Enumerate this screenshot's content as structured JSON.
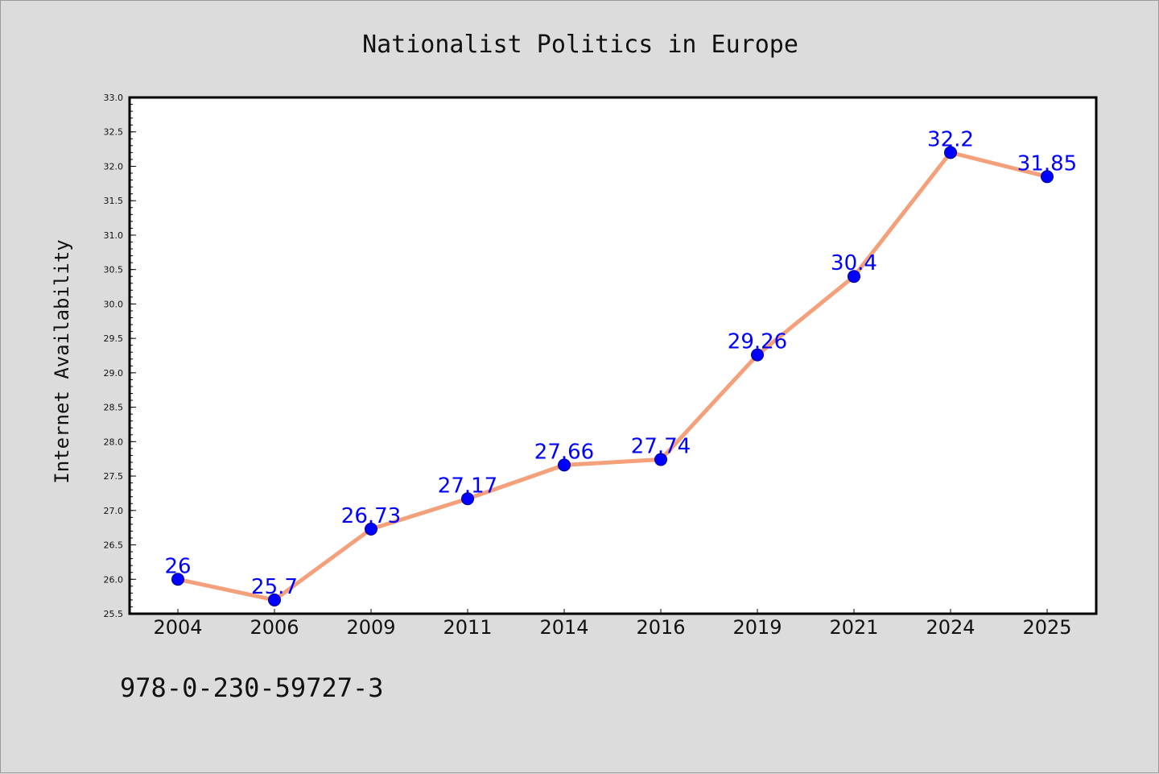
{
  "chart_data": {
    "type": "line",
    "title": "Nationalist Politics in Europe",
    "xlabel": "",
    "ylabel": "Internet Availability",
    "categories": [
      "2004",
      "2006",
      "2009",
      "2011",
      "2014",
      "2016",
      "2019",
      "2021",
      "2024",
      "2025"
    ],
    "series": [
      {
        "values": [
          26,
          25.7,
          26.73,
          27.17,
          27.66,
          27.74,
          29.26,
          30.4,
          32.2,
          31.85
        ],
        "labels": [
          "26",
          "25.7",
          "26.73",
          "27.17",
          "27.66",
          "27.74",
          "29.26",
          "30.4",
          "32.2",
          "31.85"
        ]
      }
    ],
    "ylim": [
      25.5,
      33.0
    ],
    "yticks": [
      "25.5",
      "26.0",
      "26.5",
      "27.0",
      "27.5",
      "28.0",
      "28.5",
      "29.0",
      "29.5",
      "30.0",
      "30.5",
      "31.0",
      "31.5",
      "32.0",
      "32.5",
      "33.0"
    ],
    "grid": false,
    "legend": "none",
    "colors": {
      "line": "#f4a07a",
      "marker": "#0000ff",
      "data_label": "#0000ff",
      "background": "#dcdcdc",
      "plot_area": "#ffffff"
    }
  },
  "footnote": "978-0-230-59727-3"
}
